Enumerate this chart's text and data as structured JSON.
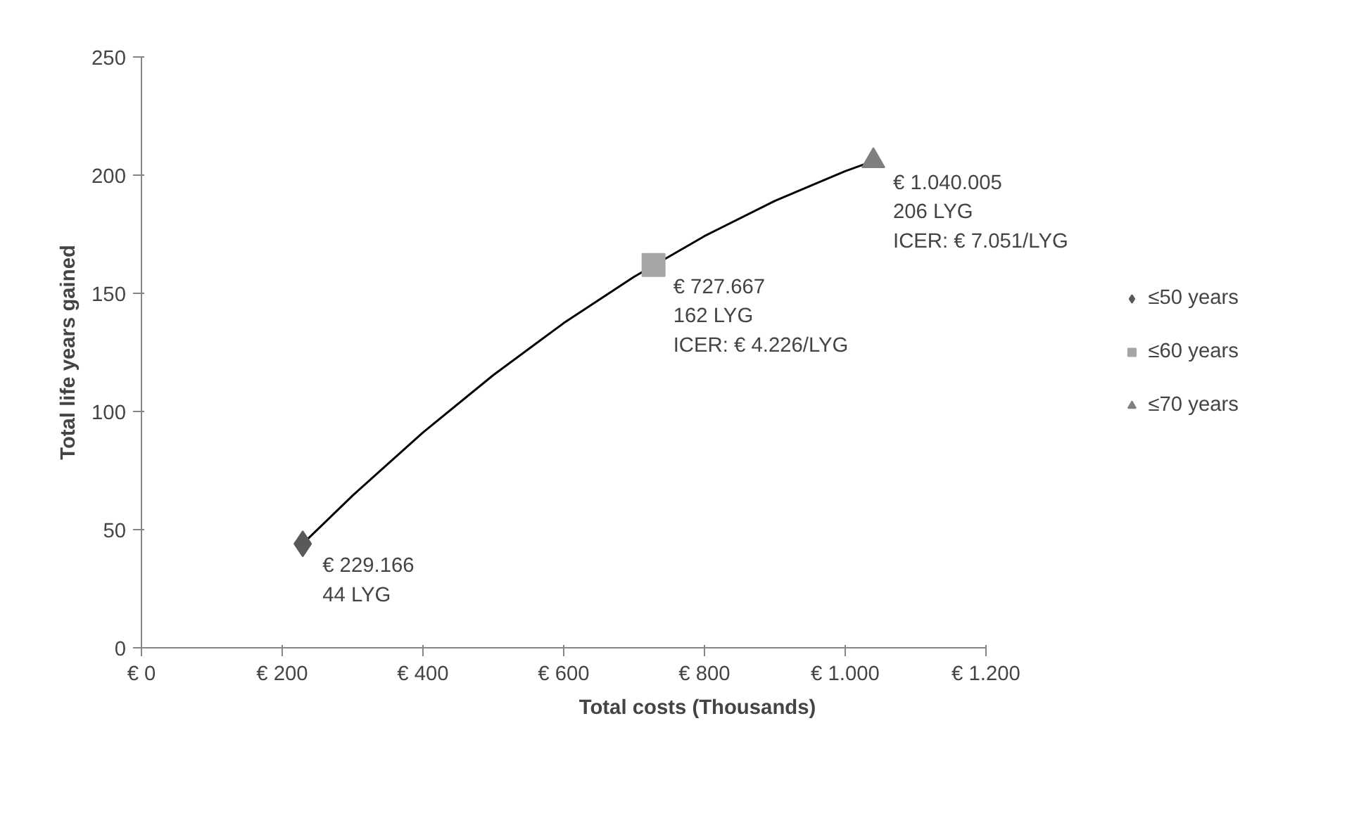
{
  "chart_data": {
    "type": "scatter",
    "xlabel": "Total costs (Thousands)",
    "ylabel": "Total life years gained",
    "xlim": [
      0,
      1200
    ],
    "ylim": [
      0,
      250
    ],
    "xticks": [
      {
        "value": 0,
        "label": "€ 0"
      },
      {
        "value": 200,
        "label": "€ 200"
      },
      {
        "value": 400,
        "label": "€ 400"
      },
      {
        "value": 600,
        "label": "€ 600"
      },
      {
        "value": 800,
        "label": "€ 800"
      },
      {
        "value": 1000,
        "label": "€ 1.000"
      },
      {
        "value": 1200,
        "label": "€ 1.200"
      }
    ],
    "yticks": [
      0,
      50,
      100,
      150,
      200,
      250
    ],
    "grid": false,
    "legend": "right",
    "series": [
      {
        "type": "line",
        "color": "#000000",
        "x": [
          229.166,
          300,
          400,
          500,
          600,
          700,
          800,
          900,
          1000,
          1040.005
        ],
        "values": [
          44,
          64.4,
          91.1,
          115.4,
          137.4,
          157.0,
          174.2,
          189.1,
          201.7,
          206
        ]
      },
      {
        "name": "≤50 years",
        "color": "#595959",
        "marker": "diamond",
        "x": [
          229.166
        ],
        "values": [
          44
        ]
      },
      {
        "name": "≤60 years",
        "color": "#a6a6a6",
        "marker": "square",
        "x": [
          727.667
        ],
        "values": [
          162
        ]
      },
      {
        "name": "≤70 years",
        "color": "#7f7f7f",
        "marker": "triangle",
        "x": [
          1040.005
        ],
        "values": [
          206
        ]
      }
    ],
    "annotations": [
      {
        "text": "€ 229.166\n44 LYG",
        "x": 229.166,
        "y": 44
      },
      {
        "text": "€ 727.667\n162 LYG\nICER: € 4.226/LYG",
        "x": 727.667,
        "y": 162
      },
      {
        "text": "€ 1.040.005\n206 LYG\nICER: € 7.051/LYG",
        "x": 1040.005,
        "y": 206
      }
    ]
  }
}
